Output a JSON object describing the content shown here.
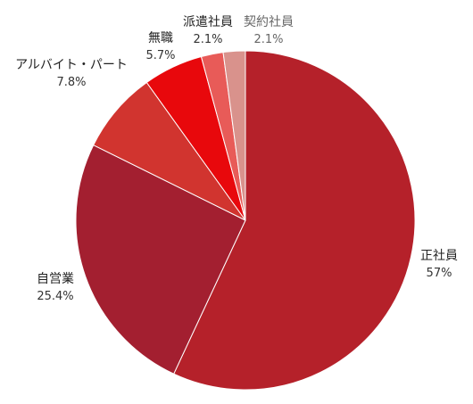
{
  "chart_data": {
    "type": "pie",
    "title": "",
    "start_angle_deg": 0,
    "direction": "clockwise",
    "slices": [
      {
        "label": "正社員",
        "value": 57,
        "value_label": "57%",
        "color": "#b5212a",
        "label_style": "normal"
      },
      {
        "label": "自営業",
        "value": 25.4,
        "value_label": "25.4%",
        "color": "#a31f30",
        "label_style": "normal"
      },
      {
        "label": "アルバイト・パート",
        "value": 7.8,
        "value_label": "7.8%",
        "color": "#d1342f",
        "label_style": "normal"
      },
      {
        "label": "無職",
        "value": 5.7,
        "value_label": "5.7%",
        "color": "#e8080c",
        "label_style": "normal"
      },
      {
        "label": "派遣社員",
        "value": 2.1,
        "value_label": "2.1%",
        "color": "#e85b58",
        "label_style": "normal"
      },
      {
        "label": "契約社員",
        "value": 2.1,
        "value_label": "2.1%",
        "color": "#d9928c",
        "label_style": "muted"
      }
    ]
  }
}
